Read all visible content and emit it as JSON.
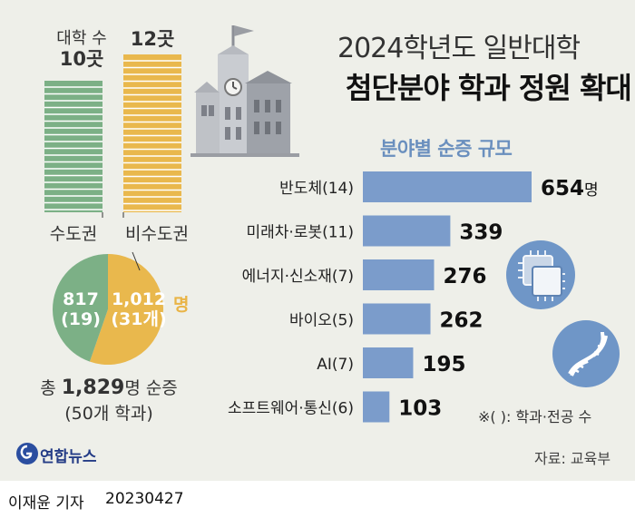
{
  "title": {
    "line1": "2024학년도 일반대학",
    "line2": "첨단분야 학과 정원 확대"
  },
  "left_panel": {
    "bar_header_label": "대학 수",
    "capital": {
      "count_label": "10곳",
      "count": 10,
      "region_label": "수도권",
      "seats": "817",
      "depts": "(19)"
    },
    "non_capital": {
      "count_label": "12곳",
      "count": 12,
      "region_label": "비수도권",
      "seats": "1,012",
      "seats_unit": "명",
      "depts": "(31개)"
    },
    "total_prefix": "총 ",
    "total_value": "1,829",
    "total_suffix": "명 순증",
    "total_sub": "(50개 학과)"
  },
  "chart_data": {
    "type": "bar",
    "title": "분야별 순증 규모",
    "categories": [
      "반도체(14)",
      "미래차·로봇(11)",
      "에너지·신소재(7)",
      "바이오(5)",
      "AI(7)",
      "소프트웨어·통신(6)"
    ],
    "values": [
      654,
      339,
      276,
      262,
      195,
      103
    ],
    "value_labels": [
      "654",
      "339",
      "276",
      "262",
      "195",
      "103"
    ],
    "first_unit": "명",
    "note": "※( ): 학과·전공 수"
  },
  "pie": {
    "values": [
      817,
      1012
    ],
    "colors": [
      "#7cb086",
      "#e9b84d"
    ]
  },
  "colors": {
    "bar": "#7b9ccb",
    "capital_bar": "#7cb086",
    "non_capital_bar": "#e9b84d",
    "accent_blue": "#6a8fbe",
    "background": "#eeefe9"
  },
  "source": "자료: 교육부",
  "brand": "연합뉴스",
  "footer": {
    "reporter": "이재윤 기자",
    "date": "20230427"
  },
  "icons": [
    "school-building-icon",
    "chip-icon",
    "dna-icon",
    "yonhap-logo-icon"
  ]
}
